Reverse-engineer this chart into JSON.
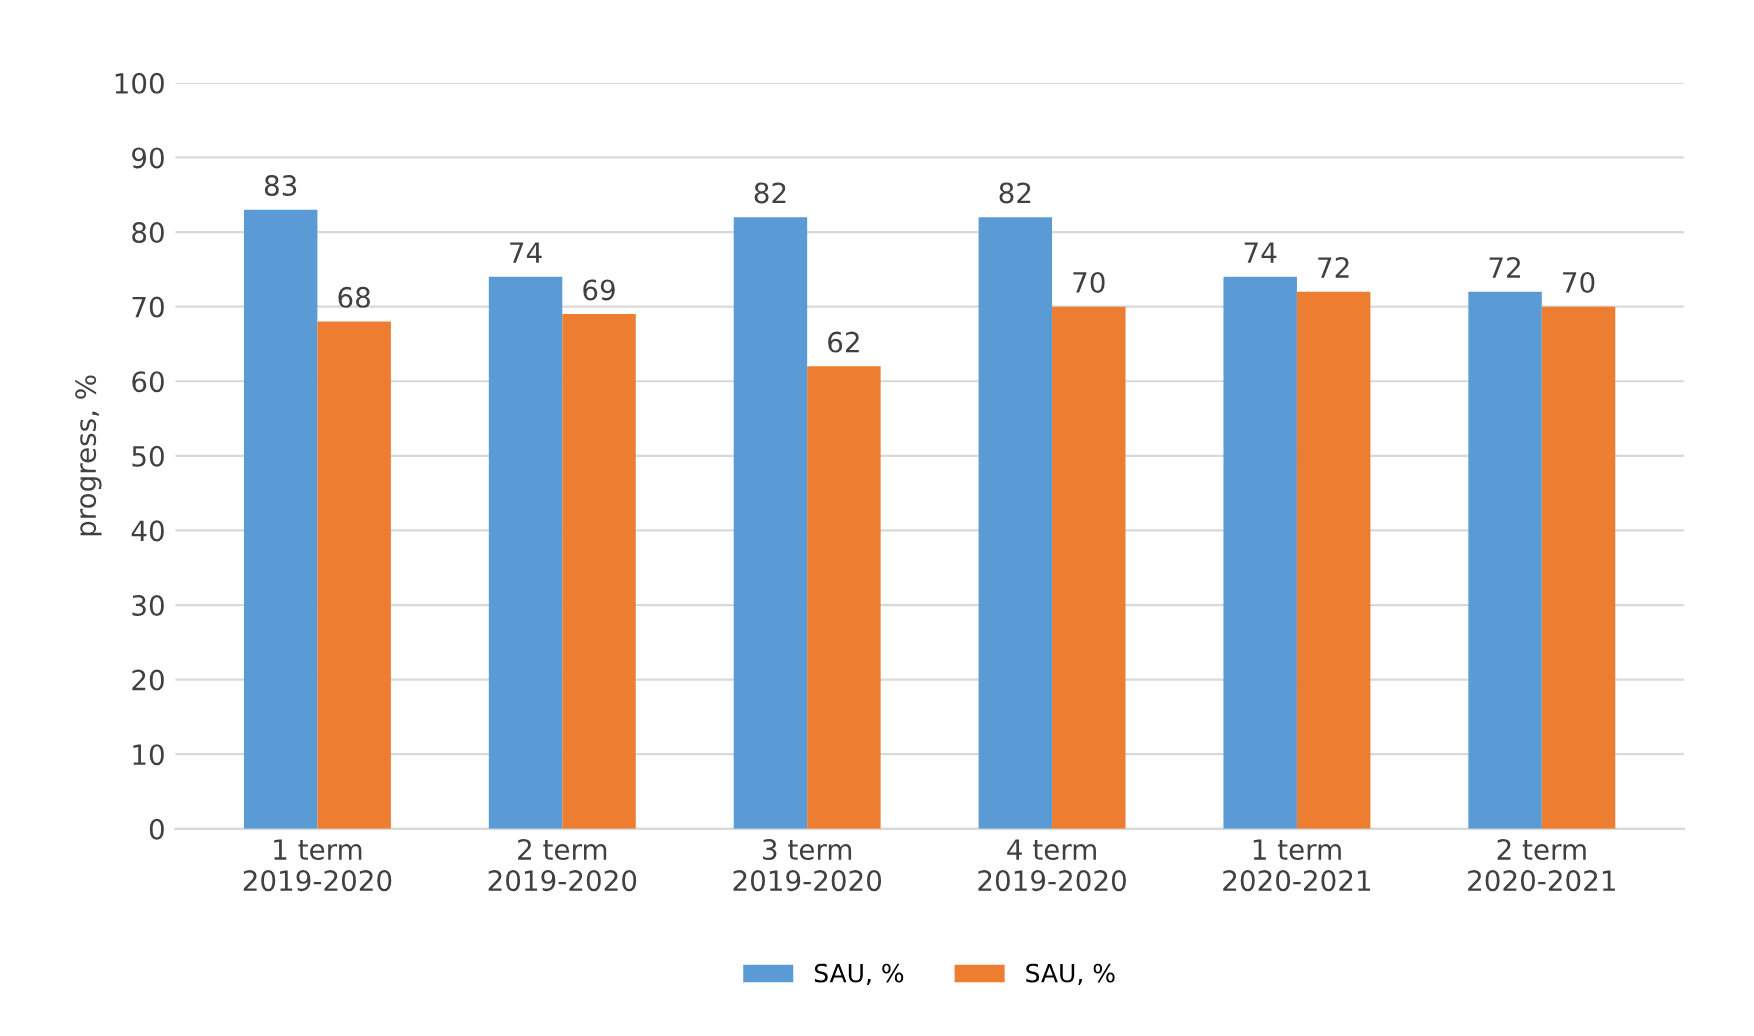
{
  "chart_data": {
    "type": "bar",
    "ylabel": "progress, %",
    "categories": [
      "1 term\n2019-2020",
      "2 term\n2019-2020",
      "3 term\n2019-2020",
      "4 term\n2019-2020",
      "1 term\n2020-2021",
      "2 term\n2020-2021"
    ],
    "series": [
      {
        "name": "SAU, %",
        "color": "#5b9bd5",
        "values": [
          83,
          74,
          82,
          82,
          74,
          72
        ]
      },
      {
        "name": "SAU, %",
        "color": "#ed7d31",
        "values": [
          68,
          69,
          62,
          70,
          72,
          70
        ]
      }
    ],
    "ylim": [
      0,
      100
    ],
    "yticks": [
      0,
      10,
      20,
      30,
      40,
      50,
      60,
      70,
      80,
      90,
      100
    ],
    "grid": "y",
    "legend": "bottom",
    "data_labels": true
  }
}
